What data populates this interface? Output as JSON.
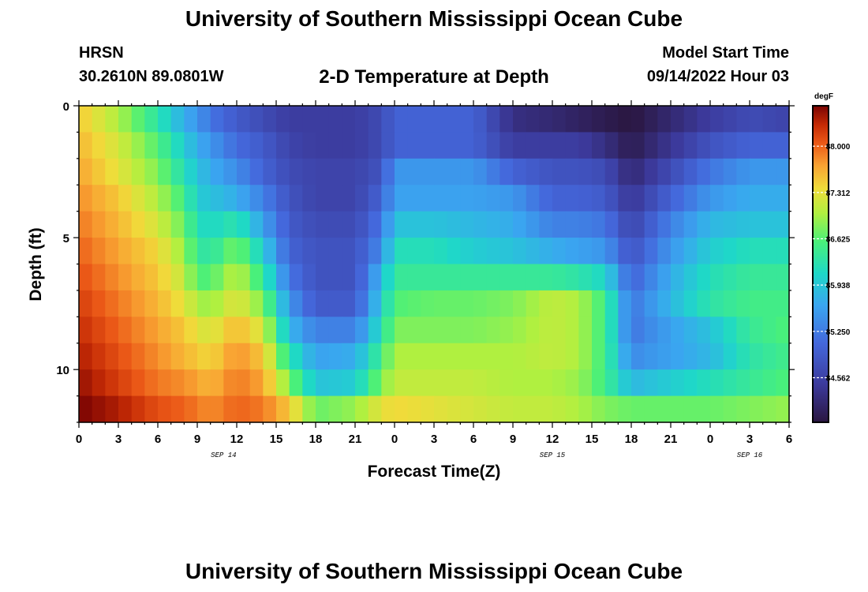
{
  "header": {
    "main_title": "University of Southern Mississippi Ocean Cube",
    "station": "HRSN",
    "coords": "30.2610N  89.0801W",
    "plot_title": "2-D Temperature at Depth",
    "model_start_label": "Model Start Time",
    "model_start_value": "09/14/2022 Hour 03"
  },
  "footer": {
    "title": "University of Southern Mississippi Ocean Cube"
  },
  "chart_data": {
    "type": "heatmap",
    "title": "2-D Temperature at Depth",
    "xlabel": "Forecast Time(Z)",
    "ylabel": "Depth (ft)",
    "x_tick_labels": [
      "0",
      "3",
      "6",
      "9",
      "12",
      "15",
      "18",
      "21",
      "0",
      "3",
      "6",
      "9",
      "12",
      "15",
      "18",
      "21",
      "0",
      "3",
      "6"
    ],
    "x_hours": [
      0,
      3,
      6,
      9,
      12,
      15,
      18,
      21,
      24,
      27,
      30,
      33,
      36,
      39,
      42,
      45,
      48,
      51,
      54
    ],
    "xlim": [
      0,
      54
    ],
    "date_labels": [
      {
        "text": "SEP 14",
        "hour": 11
      },
      {
        "text": "SEP 15",
        "hour": 36
      },
      {
        "text": "SEP 16",
        "hour": 51
      }
    ],
    "y_tick_labels": [
      "0",
      "5",
      "10"
    ],
    "y_ticks": [
      0,
      5,
      10
    ],
    "ylim": [
      0,
      12
    ],
    "colorbar": {
      "unit": "degF",
      "tick_labels": [
        "88.000",
        "87.312",
        "86.625",
        "85.938",
        "85.250",
        "84.562"
      ],
      "ticks": [
        88.0,
        87.312,
        86.625,
        85.938,
        85.25,
        84.562
      ],
      "vmin": 83.9,
      "vmax": 88.6
    },
    "depth_levels": [
      0.5,
      1.5,
      2.5,
      3.5,
      4.5,
      5.5,
      6.5,
      7.5,
      8.5,
      9.5,
      10.5,
      11.5
    ],
    "keyframe_hours": [
      0,
      3,
      6,
      8,
      9,
      10,
      12,
      14,
      16,
      18,
      21,
      23,
      24,
      27,
      30,
      33,
      36,
      38,
      40,
      42,
      45,
      48,
      51,
      54
    ],
    "temperature_keyframes": [
      [
        87.5,
        87.0,
        86.3,
        85.7,
        85.5,
        85.2,
        84.9,
        84.7,
        84.5,
        84.5,
        84.5,
        84.7,
        85.0,
        85.0,
        85.0,
        84.3,
        84.2,
        84.1,
        84.0,
        83.9,
        84.2,
        84.5,
        84.7,
        84.6
      ],
      [
        87.6,
        87.2,
        86.6,
        86.0,
        85.7,
        85.5,
        85.1,
        84.9,
        84.6,
        84.5,
        84.5,
        84.7,
        85.0,
        85.0,
        85.0,
        84.5,
        84.5,
        84.5,
        84.3,
        84.0,
        84.4,
        84.8,
        85.0,
        85.0
      ],
      [
        87.7,
        87.3,
        86.8,
        86.2,
        85.9,
        85.7,
        85.4,
        85.0,
        84.7,
        84.6,
        84.6,
        84.8,
        85.5,
        85.5,
        85.5,
        85.0,
        84.8,
        84.8,
        84.7,
        84.2,
        84.7,
        85.2,
        85.5,
        85.5
      ],
      [
        87.8,
        87.5,
        87.0,
        86.5,
        86.0,
        85.9,
        85.7,
        85.3,
        84.8,
        84.6,
        84.6,
        85.0,
        85.6,
        85.6,
        85.6,
        85.5,
        85.0,
        85.0,
        84.9,
        84.4,
        85.0,
        85.5,
        85.7,
        85.7
      ],
      [
        87.9,
        87.6,
        87.2,
        86.7,
        86.2,
        86.1,
        86.3,
        85.6,
        84.9,
        84.7,
        84.7,
        85.2,
        85.9,
        85.9,
        85.8,
        85.7,
        85.3,
        85.3,
        85.2,
        84.6,
        85.3,
        85.8,
        85.9,
        85.9
      ],
      [
        88.0,
        87.7,
        87.4,
        86.9,
        86.4,
        86.3,
        86.8,
        86.0,
        85.0,
        84.8,
        84.8,
        85.4,
        86.2,
        86.2,
        86.0,
        85.9,
        85.7,
        85.6,
        85.5,
        84.8,
        85.5,
        86.0,
        86.2,
        86.2
      ],
      [
        88.1,
        87.8,
        87.5,
        87.1,
        86.6,
        86.6,
        87.1,
        86.4,
        85.2,
        84.8,
        84.8,
        85.8,
        86.4,
        86.4,
        86.4,
        86.4,
        86.4,
        86.3,
        86.1,
        85.0,
        85.7,
        86.2,
        86.4,
        86.4
      ],
      [
        88.2,
        87.9,
        87.6,
        87.3,
        87.0,
        86.9,
        87.3,
        86.8,
        85.5,
        84.9,
        84.9,
        86.0,
        86.6,
        86.7,
        86.7,
        86.8,
        87.1,
        87.0,
        86.5,
        85.2,
        85.8,
        86.3,
        86.5,
        86.5
      ],
      [
        88.3,
        88.0,
        87.7,
        87.5,
        87.3,
        87.2,
        87.6,
        87.2,
        85.8,
        85.3,
        85.3,
        86.2,
        86.8,
        86.8,
        86.8,
        86.9,
        87.1,
        87.0,
        86.5,
        85.2,
        85.6,
        85.9,
        86.4,
        86.6
      ],
      [
        88.4,
        88.1,
        87.8,
        87.6,
        87.5,
        87.4,
        87.8,
        87.5,
        86.3,
        85.6,
        85.7,
        86.5,
        87.0,
        87.0,
        87.0,
        87.0,
        87.1,
        87.0,
        86.5,
        85.4,
        85.6,
        85.8,
        86.3,
        86.5
      ],
      [
        88.5,
        88.2,
        87.9,
        87.8,
        87.7,
        87.6,
        87.9,
        87.7,
        86.8,
        85.9,
        86.0,
        86.8,
        87.1,
        87.1,
        87.1,
        87.0,
        87.0,
        86.9,
        86.5,
        85.8,
        86.0,
        86.2,
        86.4,
        86.6
      ],
      [
        88.6,
        88.4,
        88.1,
        88.0,
        87.9,
        87.8,
        88.0,
        87.9,
        87.5,
        86.7,
        86.9,
        87.3,
        87.4,
        87.3,
        87.2,
        87.1,
        87.1,
        87.0,
        86.8,
        86.7,
        86.7,
        86.7,
        86.8,
        86.9
      ]
    ]
  }
}
